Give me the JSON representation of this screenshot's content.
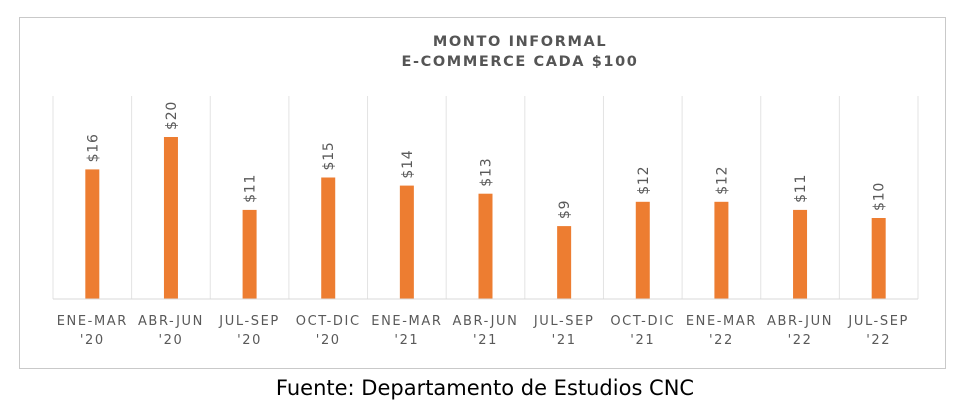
{
  "chart_data": {
    "type": "bar",
    "title": [
      "MONTO  INFORMAL",
      "E-COMMERCE CADA $100"
    ],
    "categories": [
      [
        "ENE-MAR",
        "'20"
      ],
      [
        "ABR-JUN",
        "'20"
      ],
      [
        "JUL-SEP",
        "'20"
      ],
      [
        "OCT-DIC",
        "'20"
      ],
      [
        "ENE-MAR",
        "'21"
      ],
      [
        "ABR-JUN",
        "'21"
      ],
      [
        "JUL-SEP",
        "'21"
      ],
      [
        "OCT-DIC",
        "'21"
      ],
      [
        "ENE-MAR",
        "'22"
      ],
      [
        "ABR-JUN",
        "'22"
      ],
      [
        "JUL-SEP",
        "'22"
      ]
    ],
    "values": [
      16,
      20,
      11,
      15,
      14,
      13,
      9,
      12,
      12,
      11,
      10
    ],
    "data_labels": [
      "$16",
      "$20",
      "$11",
      "$15",
      "$14",
      "$13",
      "$9",
      "$12",
      "$12",
      "$11",
      "$10"
    ],
    "ylim": [
      0,
      20
    ],
    "bar_color": "#ED7D31",
    "grid": "vertical separators",
    "legend": "none"
  },
  "source": "Fuente: Departamento de Estudios CNC"
}
